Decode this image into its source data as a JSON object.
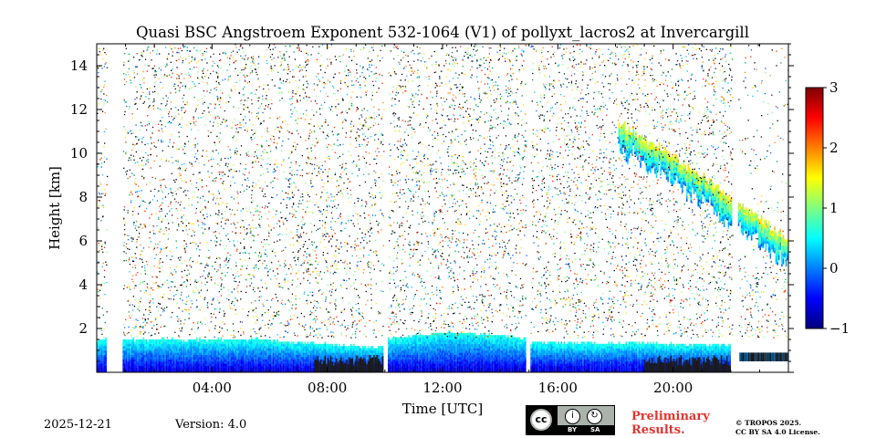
{
  "chart_data": {
    "type": "heatmap",
    "title": "Quasi BSC Angstroem Exponent 532-1064 (V1) of pollyxt_lacros2 at Invercargill",
    "xlabel": "Time [UTC]",
    "ylabel": "Height [km]",
    "xlim_hours": [
      0,
      24
    ],
    "ylim_km": [
      0,
      15
    ],
    "x_ticks": [
      {
        "value": 4,
        "label": "04:00"
      },
      {
        "value": 8,
        "label": "08:00"
      },
      {
        "value": 12,
        "label": "12:00"
      },
      {
        "value": 16,
        "label": "16:00"
      },
      {
        "value": 20,
        "label": "20:00"
      }
    ],
    "y_ticks": [
      {
        "value": 2,
        "label": "2"
      },
      {
        "value": 4,
        "label": "4"
      },
      {
        "value": 6,
        "label": "6"
      },
      {
        "value": 8,
        "label": "8"
      },
      {
        "value": 10,
        "label": "10"
      },
      {
        "value": 12,
        "label": "12"
      },
      {
        "value": 14,
        "label": "14"
      }
    ],
    "colorbar": {
      "range": [
        -1,
        3
      ],
      "ticks": [
        {
          "value": 3,
          "label": "3"
        },
        {
          "value": 2,
          "label": "2"
        },
        {
          "value": 1,
          "label": "1"
        },
        {
          "value": 0,
          "label": "0"
        },
        {
          "value": -1,
          "label": "−1"
        }
      ],
      "colormap": "jet",
      "colors": [
        "#00007f",
        "#0000ff",
        "#007fff",
        "#00ffff",
        "#7fff7f",
        "#ffff00",
        "#ff7f00",
        "#ff0000",
        "#7f0000"
      ]
    },
    "gaps_hours": [
      [
        0.35,
        0.9
      ],
      [
        9.95,
        10.1
      ],
      [
        14.9,
        15.05
      ],
      [
        22.05,
        22.25
      ]
    ],
    "features": [
      {
        "name": "boundary layer",
        "t_start": 0.0,
        "t_end": 22.0,
        "z_base": 0.0,
        "z_top": 1.6,
        "value": 0.3
      },
      {
        "name": "cirrus layer",
        "t_start": 18.1,
        "t_end": 24.0,
        "z_top_start": 11.3,
        "z_top_end": 6.0,
        "thickness": 1.2,
        "value": 1.0
      }
    ]
  },
  "footer": {
    "date": "2025-12-21",
    "version": "Version: 4.0",
    "preliminary_line1": "Preliminary",
    "preliminary_line2": "Results.",
    "license_line1": "© TROPOS 2025.",
    "license_line2": "CC BY SA 4.0 License.",
    "cc_badge": {
      "cc": "cc",
      "by": "BY",
      "sa": "SA"
    }
  }
}
